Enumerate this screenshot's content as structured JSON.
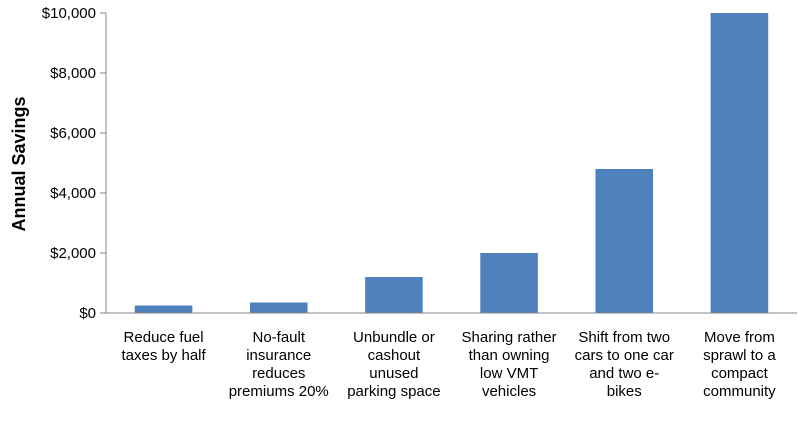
{
  "chart_data": {
    "type": "bar",
    "title": "",
    "xlabel": "",
    "ylabel": "Annual Savings",
    "ylim": [
      0,
      10000
    ],
    "yticks": [
      0,
      2000,
      4000,
      6000,
      8000,
      10000
    ],
    "ytick_labels": [
      "$0",
      "$2,000",
      "$4,000",
      "$6,000",
      "$8,000",
      "$10,000"
    ],
    "grid": false,
    "legend": "none",
    "bar_color": "#4f81bd",
    "categories": [
      [
        "Reduce fuel",
        "taxes by half"
      ],
      [
        "No-fault",
        "insurance",
        "reduces",
        "premiums 20%"
      ],
      [
        "Unbundle or",
        "cashout",
        "unused",
        "parking space"
      ],
      [
        "Sharing rather",
        "than owning",
        "low VMT",
        "vehicles"
      ],
      [
        "Shift from two",
        "cars to one car",
        "and two e-",
        "bikes"
      ],
      [
        "Move from",
        "sprawl to a",
        "compact",
        "community"
      ]
    ],
    "values": [
      250,
      350,
      1200,
      2000,
      4800,
      10000
    ]
  }
}
